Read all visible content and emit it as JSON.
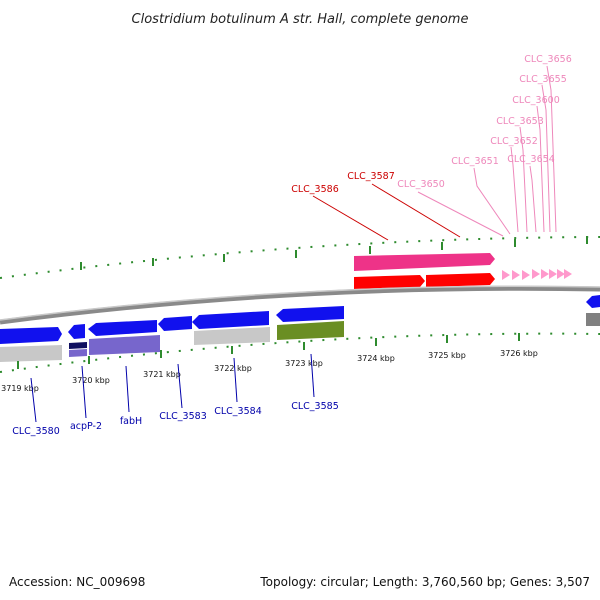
{
  "title": "Clostridium botulinum A str. Hall, complete genome",
  "footer": {
    "accession": "Accession: NC_009698",
    "summary": "Topology: circular; Length: 3,760,560 bp; Genes: 3,507"
  },
  "colors": {
    "backbone": "#8a8a8a",
    "tick": "#2e8b2e",
    "forward_label": "#cc0000",
    "forward_label_light": "#ee88bb",
    "reverse_label": "#0000aa",
    "cds_blue": "#1111ee",
    "rrna_red": "#ff0000",
    "rrna_pink": "#ee3388",
    "trna_pink": "#ff99cc",
    "rna_gray": "#c8c8c8",
    "rna_purple": "#7766cc",
    "rna_navy": "#101060",
    "rna_olive": "#6a8e23"
  },
  "axis": {
    "tick_labels": [
      "3719 kbp",
      "3720 kbp",
      "3721 kbp",
      "3722 kbp",
      "3723 kbp",
      "3724 kbp",
      "3725 kbp",
      "3726 kbp"
    ]
  },
  "labels": {
    "forward": [
      "CLC_3586",
      "CLC_3587",
      "CLC_3650",
      "CLC_3651",
      "CLC_3652",
      "CLC_3653",
      "CLC_3654",
      "CLC_3600",
      "CLC_3655",
      "CLC_3656"
    ],
    "reverse": [
      "CLC_3580",
      "acpP-2",
      "fabH",
      "CLC_3583",
      "CLC_3584",
      "CLC_3585"
    ]
  }
}
